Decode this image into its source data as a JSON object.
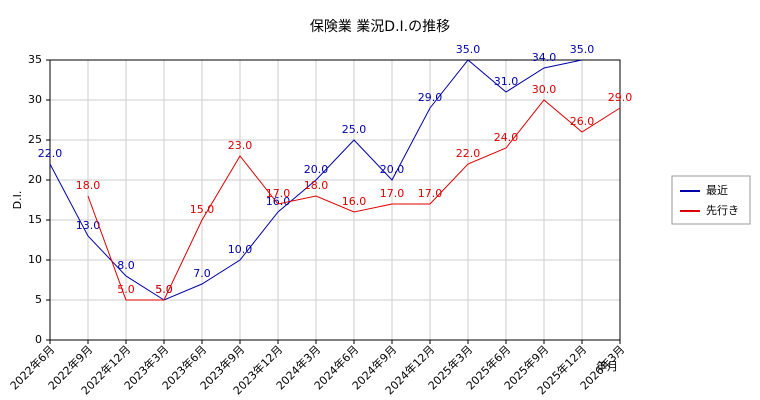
{
  "chart_data": {
    "type": "line",
    "title": "保険業 業況D.I.の推移",
    "x_label": "年月",
    "y_label": "D.I.",
    "categories": [
      "2022年6月",
      "2022年9月",
      "2022年12月",
      "2023年3月",
      "2023年6月",
      "2023年9月",
      "2023年12月",
      "2024年3月",
      "2024年6月",
      "2024年9月",
      "2024年12月",
      "2025年3月",
      "2025年6月",
      "2025年9月",
      "2025年12月",
      "2026年3月"
    ],
    "series": [
      {
        "name": "最近",
        "color": "#0000aa",
        "values": [
          22,
          13,
          8,
          5,
          7,
          10,
          16,
          20,
          25,
          20,
          29,
          35,
          31,
          34,
          35,
          null
        ],
        "value_labels": [
          "22.0",
          "13.0",
          "8.0",
          "5.0",
          "7.0",
          "10.0",
          "16.0",
          "20.0",
          "25.0",
          "20.0",
          "29.0",
          "35.0",
          "31.0",
          "34.0",
          "35.0",
          null
        ]
      },
      {
        "name": "先行き",
        "color": "#dd0000",
        "values": [
          null,
          18,
          5,
          5,
          15,
          23,
          17,
          18,
          16,
          17,
          17,
          22,
          24,
          30,
          26,
          29
        ],
        "value_labels": [
          null,
          "18.0",
          "5.0",
          "5.0",
          "15.0",
          "23.0",
          "17.0",
          "18.0",
          "16.0",
          "17.0",
          "17.0",
          "22.0",
          "24.0",
          "30.0",
          "26.0",
          "29.0"
        ]
      }
    ],
    "ylim": [
      0,
      35
    ],
    "yticks": [
      0,
      5,
      10,
      15,
      20,
      25,
      30,
      35
    ],
    "grid": true,
    "legend": "right"
  }
}
